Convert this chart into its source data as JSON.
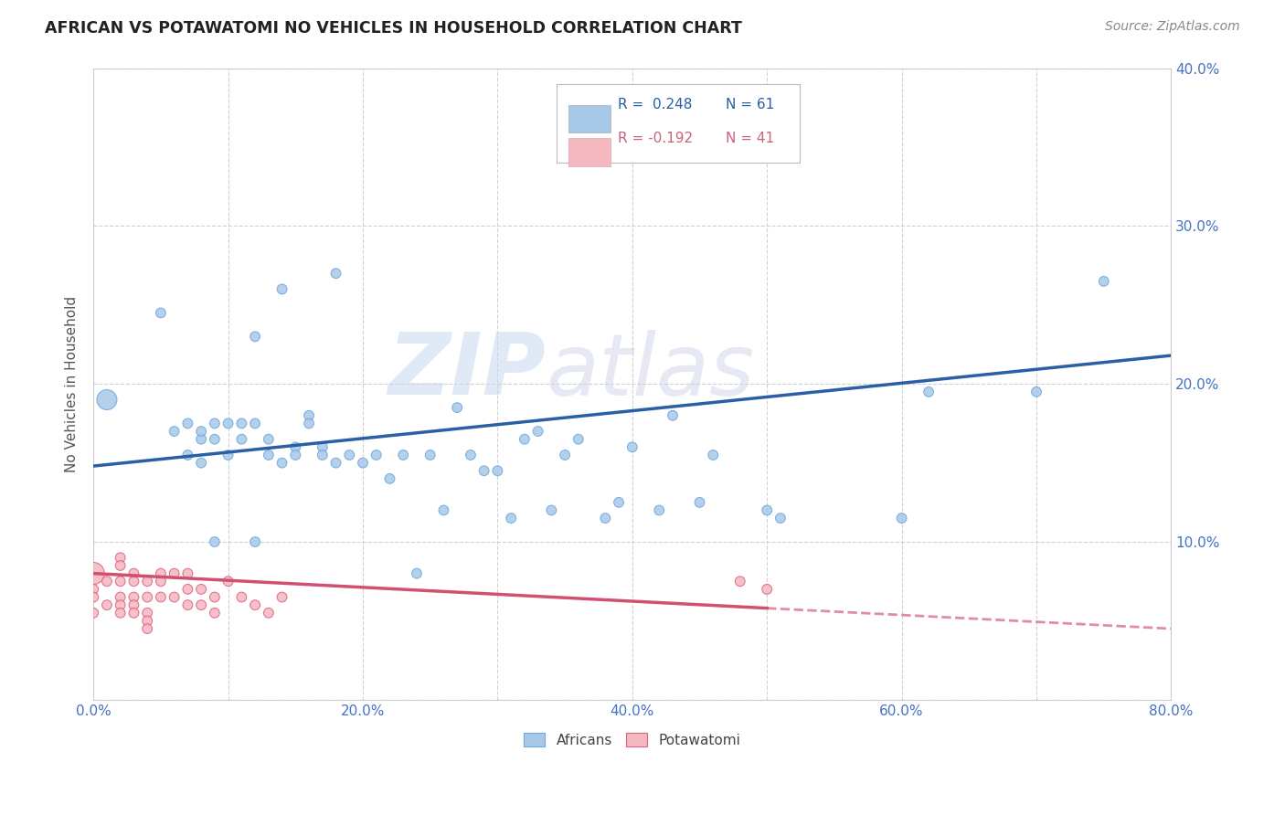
{
  "title": "AFRICAN VS POTAWATOMI NO VEHICLES IN HOUSEHOLD CORRELATION CHART",
  "source": "Source: ZipAtlas.com",
  "ylabel": "No Vehicles in Household",
  "xlim": [
    0.0,
    0.8
  ],
  "ylim": [
    0.0,
    0.4
  ],
  "african_color": "#a8c8e8",
  "african_edge_color": "#6fa8dc",
  "potawatomi_color": "#f4b8c0",
  "potawatomi_edge_color": "#e06080",
  "trendline_african_color": "#2a5fa5",
  "trendline_potawatomi_color": "#d05070",
  "legend_R_african": "R =  0.248",
  "legend_N_african": "N = 61",
  "legend_R_potawatomi": "R = -0.192",
  "legend_N_potawatomi": "N = 41",
  "legend_african_patch": "#a8c8e8",
  "legend_potawatomi_patch": "#f4b8c0",
  "african_x": [
    0.01,
    0.05,
    0.06,
    0.07,
    0.07,
    0.08,
    0.08,
    0.08,
    0.09,
    0.09,
    0.09,
    0.1,
    0.1,
    0.11,
    0.11,
    0.12,
    0.12,
    0.12,
    0.13,
    0.13,
    0.14,
    0.14,
    0.15,
    0.15,
    0.16,
    0.16,
    0.17,
    0.17,
    0.18,
    0.18,
    0.19,
    0.2,
    0.21,
    0.22,
    0.23,
    0.24,
    0.25,
    0.26,
    0.27,
    0.28,
    0.29,
    0.3,
    0.31,
    0.32,
    0.33,
    0.34,
    0.35,
    0.36,
    0.38,
    0.39,
    0.4,
    0.42,
    0.43,
    0.45,
    0.46,
    0.5,
    0.51,
    0.6,
    0.62,
    0.7,
    0.75
  ],
  "african_y": [
    0.19,
    0.245,
    0.17,
    0.175,
    0.155,
    0.165,
    0.15,
    0.17,
    0.165,
    0.1,
    0.175,
    0.175,
    0.155,
    0.165,
    0.175,
    0.23,
    0.1,
    0.175,
    0.165,
    0.155,
    0.26,
    0.15,
    0.16,
    0.155,
    0.18,
    0.175,
    0.16,
    0.155,
    0.27,
    0.15,
    0.155,
    0.15,
    0.155,
    0.14,
    0.155,
    0.08,
    0.155,
    0.12,
    0.185,
    0.155,
    0.145,
    0.145,
    0.115,
    0.165,
    0.17,
    0.12,
    0.155,
    0.165,
    0.115,
    0.125,
    0.16,
    0.12,
    0.18,
    0.125,
    0.155,
    0.12,
    0.115,
    0.115,
    0.195,
    0.195,
    0.265
  ],
  "african_sizes": [
    250,
    60,
    60,
    60,
    60,
    60,
    60,
    60,
    60,
    60,
    60,
    60,
    60,
    60,
    60,
    60,
    60,
    60,
    60,
    60,
    60,
    60,
    60,
    60,
    60,
    60,
    60,
    60,
    60,
    60,
    60,
    60,
    60,
    60,
    60,
    60,
    60,
    60,
    60,
    60,
    60,
    60,
    60,
    60,
    60,
    60,
    60,
    60,
    60,
    60,
    60,
    60,
    60,
    60,
    60,
    60,
    60,
    60,
    60,
    60,
    60
  ],
  "potawatomi_x": [
    0.0,
    0.0,
    0.0,
    0.0,
    0.01,
    0.01,
    0.02,
    0.02,
    0.02,
    0.02,
    0.02,
    0.02,
    0.03,
    0.03,
    0.03,
    0.03,
    0.03,
    0.04,
    0.04,
    0.04,
    0.04,
    0.04,
    0.05,
    0.05,
    0.05,
    0.06,
    0.06,
    0.07,
    0.07,
    0.07,
    0.08,
    0.08,
    0.09,
    0.09,
    0.1,
    0.11,
    0.12,
    0.13,
    0.14,
    0.48,
    0.5
  ],
  "potawatomi_y": [
    0.08,
    0.07,
    0.065,
    0.055,
    0.075,
    0.06,
    0.09,
    0.085,
    0.075,
    0.065,
    0.06,
    0.055,
    0.08,
    0.075,
    0.065,
    0.06,
    0.055,
    0.075,
    0.065,
    0.055,
    0.05,
    0.045,
    0.08,
    0.075,
    0.065,
    0.08,
    0.065,
    0.08,
    0.07,
    0.06,
    0.07,
    0.06,
    0.065,
    0.055,
    0.075,
    0.065,
    0.06,
    0.055,
    0.065,
    0.075,
    0.07
  ],
  "potawatomi_sizes": [
    300,
    60,
    60,
    60,
    60,
    60,
    60,
    60,
    60,
    60,
    60,
    60,
    60,
    60,
    60,
    60,
    60,
    60,
    60,
    60,
    60,
    60,
    60,
    60,
    60,
    60,
    60,
    60,
    60,
    60,
    60,
    60,
    60,
    60,
    60,
    60,
    60,
    60,
    60,
    60,
    60
  ],
  "watermark_zip": "ZIP",
  "watermark_atlas": "atlas",
  "background_color": "#ffffff",
  "grid_color": "#cccccc",
  "trend_af_x0": 0.0,
  "trend_af_y0": 0.148,
  "trend_af_x1": 0.8,
  "trend_af_y1": 0.218,
  "trend_pot_solid_x0": 0.0,
  "trend_pot_solid_y0": 0.08,
  "trend_pot_solid_x1": 0.5,
  "trend_pot_solid_y1": 0.058,
  "trend_pot_dash_x0": 0.5,
  "trend_pot_dash_y0": 0.058,
  "trend_pot_dash_x1": 0.8,
  "trend_pot_dash_y1": 0.045
}
